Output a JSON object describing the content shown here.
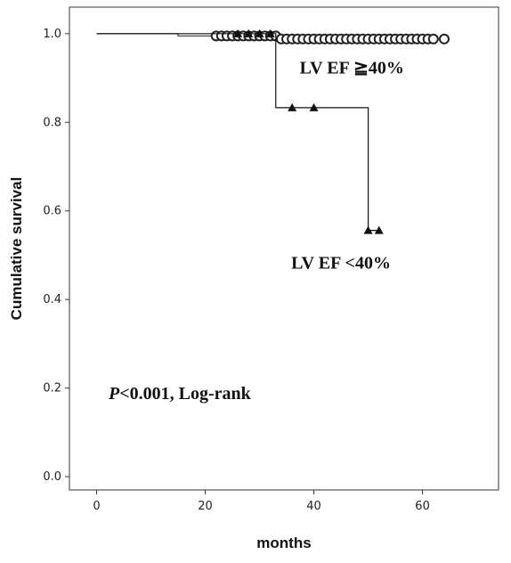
{
  "chart_data": {
    "type": "line",
    "subtype": "kaplan-meier",
    "title": "",
    "xlabel": "months",
    "ylabel": "Cumulative survival",
    "xlim": [
      -5,
      74
    ],
    "ylim": [
      -0.03,
      1.06
    ],
    "xticks": [
      "0",
      "20",
      "40",
      "60"
    ],
    "xtick_values": [
      0,
      20,
      40,
      60
    ],
    "yticks": [
      "0.0",
      "0.2",
      "0.4",
      "0.6",
      "0.8",
      "1.0"
    ],
    "ytick_values": [
      0.0,
      0.2,
      0.4,
      0.6,
      0.8,
      1.0
    ],
    "grid": false,
    "series": [
      {
        "name": "LV EF ≧40%",
        "color": "#333333",
        "marker": "circle",
        "steps": [
          [
            0,
            1.0
          ],
          [
            15,
            1.0
          ],
          [
            15,
            0.995
          ],
          [
            33,
            0.995
          ],
          [
            33,
            0.988
          ],
          [
            64,
            0.988
          ]
        ],
        "censored": [
          [
            22,
            0.995
          ],
          [
            23,
            0.995
          ],
          [
            24,
            0.995
          ],
          [
            25,
            0.995
          ],
          [
            26,
            0.995
          ],
          [
            27,
            0.995
          ],
          [
            28,
            0.995
          ],
          [
            29,
            0.995
          ],
          [
            30,
            0.995
          ],
          [
            31,
            0.995
          ],
          [
            32,
            0.995
          ],
          [
            33,
            0.995
          ],
          [
            34,
            0.988
          ],
          [
            35,
            0.988
          ],
          [
            36,
            0.988
          ],
          [
            37,
            0.988
          ],
          [
            38,
            0.988
          ],
          [
            39,
            0.988
          ],
          [
            40,
            0.988
          ],
          [
            41,
            0.988
          ],
          [
            42,
            0.988
          ],
          [
            43,
            0.988
          ],
          [
            44,
            0.988
          ],
          [
            45,
            0.988
          ],
          [
            46,
            0.988
          ],
          [
            47,
            0.988
          ],
          [
            48,
            0.988
          ],
          [
            49,
            0.988
          ],
          [
            50,
            0.988
          ],
          [
            51,
            0.988
          ],
          [
            52,
            0.988
          ],
          [
            53,
            0.988
          ],
          [
            54,
            0.988
          ],
          [
            55,
            0.988
          ],
          [
            56,
            0.988
          ],
          [
            57,
            0.988
          ],
          [
            58,
            0.988
          ],
          [
            59,
            0.988
          ],
          [
            60,
            0.988
          ],
          [
            61,
            0.988
          ],
          [
            62,
            0.988
          ],
          [
            64,
            0.988
          ]
        ]
      },
      {
        "name": "LV EF <40%",
        "color": "#111111",
        "marker": "triangle",
        "steps": [
          [
            0,
            1.0
          ],
          [
            33,
            1.0
          ],
          [
            33,
            0.833
          ],
          [
            50,
            0.833
          ],
          [
            50,
            0.556
          ],
          [
            52,
            0.556
          ]
        ],
        "censored": [
          [
            26,
            1.0
          ],
          [
            28,
            1.0
          ],
          [
            30,
            1.0
          ],
          [
            32,
            1.0
          ],
          [
            36,
            0.833
          ],
          [
            40,
            0.833
          ],
          [
            50,
            0.556
          ],
          [
            52,
            0.556
          ]
        ]
      }
    ],
    "annotations": [
      {
        "text": "LV EF ≧40%",
        "x": 47,
        "y": 0.91
      },
      {
        "text": "LV EF <40%",
        "x": 45,
        "y": 0.47
      }
    ],
    "stat_label": {
      "italic": "P",
      "rest": "<0.001, Log-rank"
    }
  }
}
